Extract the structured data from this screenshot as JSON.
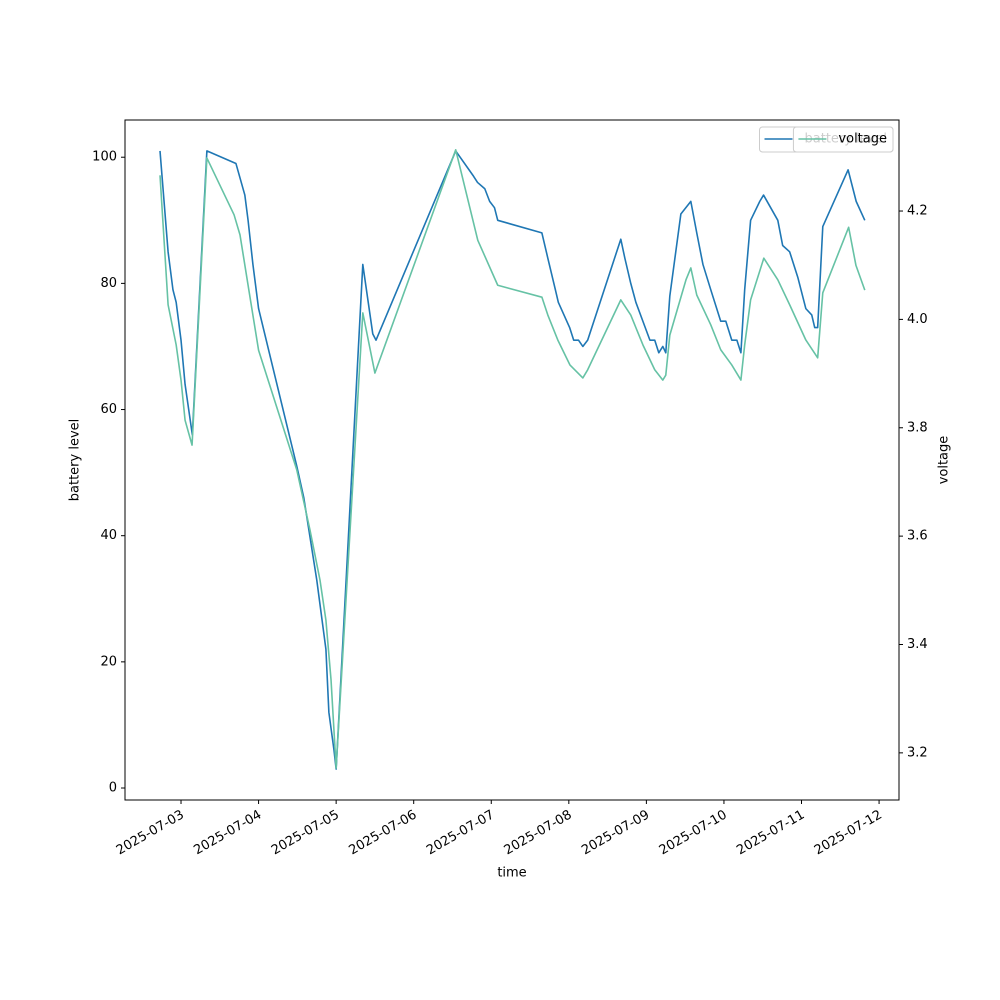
{
  "chart_data": {
    "type": "line",
    "xlabel": "time",
    "ylabel": "battery level",
    "y2label": "voltage",
    "xlim": [
      "2025-07-02T06:40",
      "2025-07-12T06:10"
    ],
    "xticks": [
      "2025-07-03",
      "2025-07-04",
      "2025-07-05",
      "2025-07-06",
      "2025-07-07",
      "2025-07-08",
      "2025-07-09",
      "2025-07-10",
      "2025-07-11",
      "2025-07-12"
    ],
    "ylim": [
      -1.9,
      105.9
    ],
    "yticks": [
      0,
      20,
      40,
      60,
      80,
      100
    ],
    "y2lim": [
      3.113,
      4.368
    ],
    "y2ticks": [
      3.2,
      3.4,
      3.6,
      3.8,
      {
        "value": 4,
        "label": "4.0"
      },
      4.2
    ],
    "legend": "upper right",
    "series": [
      {
        "name": "battery level",
        "color": "#1f77b4",
        "x": [
          "2025-07-02T17:30",
          "2025-07-02T20:00",
          "2025-07-02T21:30",
          "2025-07-02T22:30",
          "2025-07-03T00:00",
          "2025-07-03T01:15",
          "2025-07-03T03:30",
          "2025-07-03T08:00",
          "2025-07-03T17:00",
          "2025-07-03T19:45",
          "2025-07-03T20:45",
          "2025-07-03T22:15",
          "2025-07-04T00:00",
          "2025-07-04T11:50",
          "2025-07-04T14:00",
          "2025-07-04T18:00",
          "2025-07-04T20:50",
          "2025-07-04T21:45",
          "2025-07-04T23:20",
          "2025-07-05T00:00",
          "2025-07-05T08:15",
          "2025-07-05T11:20",
          "2025-07-05T12:20",
          "2025-07-06T13:00",
          "2025-07-06T18:30",
          "2025-07-06T19:45",
          "2025-07-06T22:00",
          "2025-07-06T23:30",
          "2025-07-07T01:00",
          "2025-07-07T02:00",
          "2025-07-07T15:40",
          "2025-07-07T16:35",
          "2025-07-07T17:30",
          "2025-07-07T19:50",
          "2025-07-07T20:45",
          "2025-07-08T00:15",
          "2025-07-08T01:30",
          "2025-07-08T03:00",
          "2025-07-08T04:20",
          "2025-07-08T05:50",
          "2025-07-08T16:05",
          "2025-07-08T17:20",
          "2025-07-08T19:10",
          "2025-07-08T20:45",
          "2025-07-08T22:55",
          "2025-07-09T01:05",
          "2025-07-09T02:35",
          "2025-07-09T03:50",
          "2025-07-09T05:05",
          "2025-07-09T06:00",
          "2025-07-09T07:15",
          "2025-07-09T10:40",
          "2025-07-09T13:45",
          "2025-07-09T15:35",
          "2025-07-09T17:30",
          "2025-07-09T19:55",
          "2025-07-09T23:00",
          "2025-07-10T00:35",
          "2025-07-10T02:25",
          "2025-07-10T04:00",
          "2025-07-10T05:15",
          "2025-07-10T06:25",
          "2025-07-10T08:15",
          "2025-07-10T11:05",
          "2025-07-10T12:15",
          "2025-07-10T16:40",
          "2025-07-10T18:10",
          "2025-07-10T20:20",
          "2025-07-10T22:50",
          "2025-07-11T01:20",
          "2025-07-11T03:10",
          "2025-07-11T04:05",
          "2025-07-11T05:00",
          "2025-07-11T06:35",
          "2025-07-11T14:25",
          "2025-07-11T16:55",
          "2025-07-11T19:35"
        ],
        "values": [
          101,
          85,
          79,
          77,
          71,
          64,
          56,
          101,
          99,
          94,
          90,
          83,
          76,
          51,
          46,
          33,
          22,
          12,
          6,
          3,
          83,
          72,
          71,
          101,
          97,
          96,
          95,
          93,
          92,
          90,
          88,
          86,
          84,
          79,
          77,
          73,
          71,
          71,
          70,
          71,
          87,
          84,
          80,
          77,
          74,
          71,
          71,
          69,
          70,
          69,
          78,
          91,
          93,
          88,
          83,
          79,
          74,
          74,
          71,
          71,
          69,
          79,
          90,
          93,
          94,
          90,
          86,
          85,
          81,
          76,
          75,
          73,
          73,
          89,
          98,
          93,
          90
        ]
      },
      {
        "name": "voltage",
        "color": "#66c2a5",
        "axis": "y2",
        "x": [
          "2025-07-02T17:30",
          "2025-07-02T20:00",
          "2025-07-02T22:30",
          "2025-07-03T00:00",
          "2025-07-03T01:15",
          "2025-07-03T03:25",
          "2025-07-03T08:00",
          "2025-07-03T16:25",
          "2025-07-03T18:15",
          "2025-07-03T20:45",
          "2025-07-04T00:00",
          "2025-07-04T11:50",
          "2025-07-04T15:55",
          "2025-07-04T19:00",
          "2025-07-04T20:50",
          "2025-07-04T22:25",
          "2025-07-05T00:00",
          "2025-07-05T08:15",
          "2025-07-05T12:00",
          "2025-07-06T13:00",
          "2025-07-06T19:50",
          "2025-07-07T02:00",
          "2025-07-07T15:40",
          "2025-07-07T17:30",
          "2025-07-07T20:35",
          "2025-07-08T00:20",
          "2025-07-08T04:20",
          "2025-07-08T05:50",
          "2025-07-08T16:05",
          "2025-07-08T19:10",
          "2025-07-08T22:55",
          "2025-07-09T02:35",
          "2025-07-09T05:05",
          "2025-07-09T06:00",
          "2025-07-09T07:15",
          "2025-07-09T12:15",
          "2025-07-09T13:45",
          "2025-07-09T15:35",
          "2025-07-09T19:55",
          "2025-07-09T23:00",
          "2025-07-10T02:25",
          "2025-07-10T05:15",
          "2025-07-10T06:25",
          "2025-07-10T08:15",
          "2025-07-10T12:20",
          "2025-07-10T16:40",
          "2025-07-10T20:20",
          "2025-07-11T01:20",
          "2025-07-11T05:00",
          "2025-07-11T06:35",
          "2025-07-11T14:35",
          "2025-07-11T16:50",
          "2025-07-11T19:35"
        ],
        "values": [
          4.266,
          4.027,
          3.953,
          3.888,
          3.814,
          3.768,
          4.298,
          4.193,
          4.156,
          4.063,
          3.943,
          3.722,
          3.611,
          3.519,
          3.445,
          3.335,
          3.172,
          4.012,
          3.901,
          4.313,
          4.146,
          4.063,
          4.041,
          4.008,
          3.962,
          3.916,
          3.892,
          3.907,
          4.036,
          4.008,
          3.953,
          3.907,
          3.888,
          3.897,
          3.971,
          4.073,
          4.095,
          4.045,
          3.99,
          3.944,
          3.916,
          3.888,
          3.953,
          4.036,
          4.113,
          4.073,
          4.027,
          3.962,
          3.929,
          4.049,
          4.17,
          4.1,
          4.054
        ]
      }
    ]
  }
}
